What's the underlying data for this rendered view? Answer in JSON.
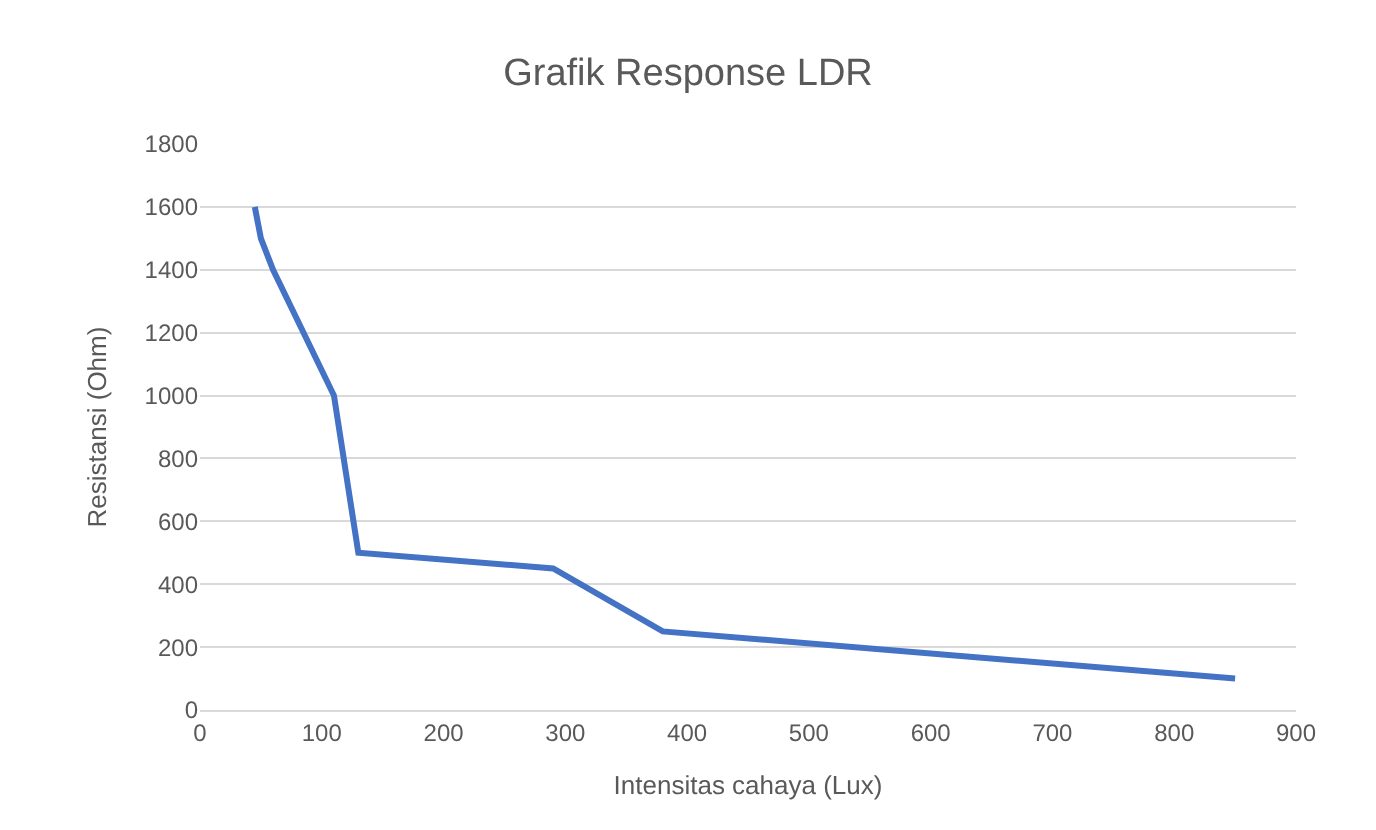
{
  "chart_data": {
    "type": "line",
    "title": "Grafik Response LDR",
    "xlabel": "Intensitas cahaya (Lux)",
    "ylabel": "Resistansi (Ohm)",
    "x": [
      45,
      50,
      60,
      110,
      130,
      290,
      380,
      850
    ],
    "series": [
      {
        "color": "#4472c4",
        "values": [
          1600,
          1500,
          1400,
          1000,
          500,
          450,
          250,
          100
        ]
      }
    ],
    "xlim": [
      0,
      900
    ],
    "xticks": [
      0,
      100,
      200,
      300,
      400,
      500,
      600,
      700,
      800,
      900
    ],
    "ylim": [
      0,
      1800
    ],
    "yticks": [
      0,
      200,
      400,
      600,
      800,
      1000,
      1200,
      1400,
      1600,
      1800
    ],
    "grid": "y",
    "marker": "none",
    "line_style": "solid"
  }
}
